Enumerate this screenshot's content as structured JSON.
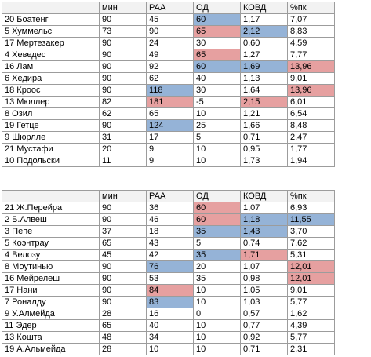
{
  "columns": [
    "",
    "мин",
    "РАА",
    "ОД",
    "КОВД",
    "%пк"
  ],
  "colors": {
    "blue": "#95b3d7",
    "red": "#e6a0a0"
  },
  "tables": [
    {
      "rows": [
        {
          "cells": [
            "20 Боатенг",
            "90",
            "45",
            "60",
            "1,17",
            "7,07"
          ],
          "hl": [
            null,
            null,
            null,
            "blue",
            null,
            null
          ]
        },
        {
          "cells": [
            "5 Хуммельс",
            "73",
            "90",
            "65",
            "2,12",
            "8,83"
          ],
          "hl": [
            null,
            null,
            null,
            "red",
            "blue",
            null
          ]
        },
        {
          "cells": [
            "17 Мертезакер",
            "90",
            "24",
            "30",
            "0,60",
            "4,59"
          ],
          "hl": [
            null,
            null,
            null,
            null,
            null,
            null
          ]
        },
        {
          "cells": [
            "4 Хеведес",
            "90",
            "49",
            "65",
            "1,27",
            "7,77"
          ],
          "hl": [
            null,
            null,
            null,
            "red",
            null,
            null
          ]
        },
        {
          "cells": [
            "16 Лам",
            "90",
            "92",
            "60",
            "1,69",
            "13,96"
          ],
          "hl": [
            null,
            null,
            null,
            "blue",
            "blue",
            "red"
          ]
        },
        {
          "cells": [
            "6 Хедира",
            "90",
            "62",
            "40",
            "1,13",
            "9,01"
          ],
          "hl": [
            null,
            null,
            null,
            null,
            null,
            null
          ]
        },
        {
          "cells": [
            "18 Кроос",
            "90",
            "118",
            "30",
            "1,64",
            "13,96"
          ],
          "hl": [
            null,
            null,
            "blue",
            null,
            null,
            "red"
          ]
        },
        {
          "cells": [
            "13 Мюллер",
            "82",
            "181",
            "-5",
            "2,15",
            "6,01"
          ],
          "hl": [
            null,
            null,
            "red",
            null,
            "red",
            null
          ]
        },
        {
          "cells": [
            "8 Озил",
            "62",
            "65",
            "10",
            "1,21",
            "6,54"
          ],
          "hl": [
            null,
            null,
            null,
            null,
            null,
            null
          ]
        },
        {
          "cells": [
            "19 Гетце",
            "90",
            "124",
            "25",
            "1,66",
            "8,48"
          ],
          "hl": [
            null,
            null,
            "blue",
            null,
            null,
            null
          ]
        },
        {
          "cells": [
            "9 Шюрлле",
            "31",
            "17",
            "5",
            "0,71",
            "2,47"
          ],
          "hl": [
            null,
            null,
            null,
            null,
            null,
            null
          ]
        },
        {
          "cells": [
            "21 Мустафи",
            "20",
            "9",
            "10",
            "0,95",
            "1,77"
          ],
          "hl": [
            null,
            null,
            null,
            null,
            null,
            null
          ]
        },
        {
          "cells": [
            "10 Подольски",
            "11",
            "9",
            "10",
            "1,73",
            "1,94"
          ],
          "hl": [
            null,
            null,
            null,
            null,
            null,
            null
          ]
        }
      ]
    },
    {
      "rows": [
        {
          "cells": [
            "21 Ж.Перейра",
            "90",
            "36",
            "60",
            "1,07",
            "6,93"
          ],
          "hl": [
            null,
            null,
            null,
            "red",
            null,
            null
          ]
        },
        {
          "cells": [
            "2 Б.Алвеш",
            "90",
            "46",
            "60",
            "1,18",
            "11,55"
          ],
          "hl": [
            null,
            null,
            null,
            "red",
            "blue",
            "blue"
          ]
        },
        {
          "cells": [
            "3 Пепе",
            "37",
            "18",
            "35",
            "1,43",
            "3,70"
          ],
          "hl": [
            null,
            null,
            null,
            "blue",
            "blue",
            null
          ]
        },
        {
          "cells": [
            "5 Коэнтрау",
            "65",
            "43",
            "5",
            "0,74",
            "7,62"
          ],
          "hl": [
            null,
            null,
            null,
            null,
            null,
            null
          ]
        },
        {
          "cells": [
            "4 Велозу",
            "45",
            "42",
            "35",
            "1,71",
            "5,31"
          ],
          "hl": [
            null,
            null,
            null,
            "blue",
            "red",
            null
          ]
        },
        {
          "cells": [
            "8 Моутинью",
            "90",
            "76",
            "20",
            "1,07",
            "12,01"
          ],
          "hl": [
            null,
            null,
            "blue",
            null,
            null,
            "red"
          ]
        },
        {
          "cells": [
            "16 Мейрелеш",
            "90",
            "53",
            "35",
            "0,98",
            "12,01"
          ],
          "hl": [
            null,
            null,
            null,
            null,
            null,
            "red"
          ]
        },
        {
          "cells": [
            "17 Нани",
            "90",
            "84",
            "10",
            "1,05",
            "9,01"
          ],
          "hl": [
            null,
            null,
            "red",
            null,
            null,
            null
          ]
        },
        {
          "cells": [
            "7 Роналду",
            "90",
            "83",
            "10",
            "1,03",
            "5,77"
          ],
          "hl": [
            null,
            null,
            "blue",
            null,
            null,
            null
          ]
        },
        {
          "cells": [
            "9 У.Алмейда",
            "28",
            "16",
            "0",
            "0,57",
            "1,62"
          ],
          "hl": [
            null,
            null,
            null,
            null,
            null,
            null
          ]
        },
        {
          "cells": [
            "11 Эдер",
            "65",
            "40",
            "10",
            "0,77",
            "4,39"
          ],
          "hl": [
            null,
            null,
            null,
            null,
            null,
            null
          ]
        },
        {
          "cells": [
            "13 Кошта",
            "48",
            "34",
            "10",
            "0,92",
            "5,77"
          ],
          "hl": [
            null,
            null,
            null,
            null,
            null,
            null
          ]
        },
        {
          "cells": [
            "19 А.Альмейда",
            "28",
            "10",
            "10",
            "0,71",
            "2,31"
          ],
          "hl": [
            null,
            null,
            null,
            null,
            null,
            null
          ]
        }
      ]
    }
  ]
}
